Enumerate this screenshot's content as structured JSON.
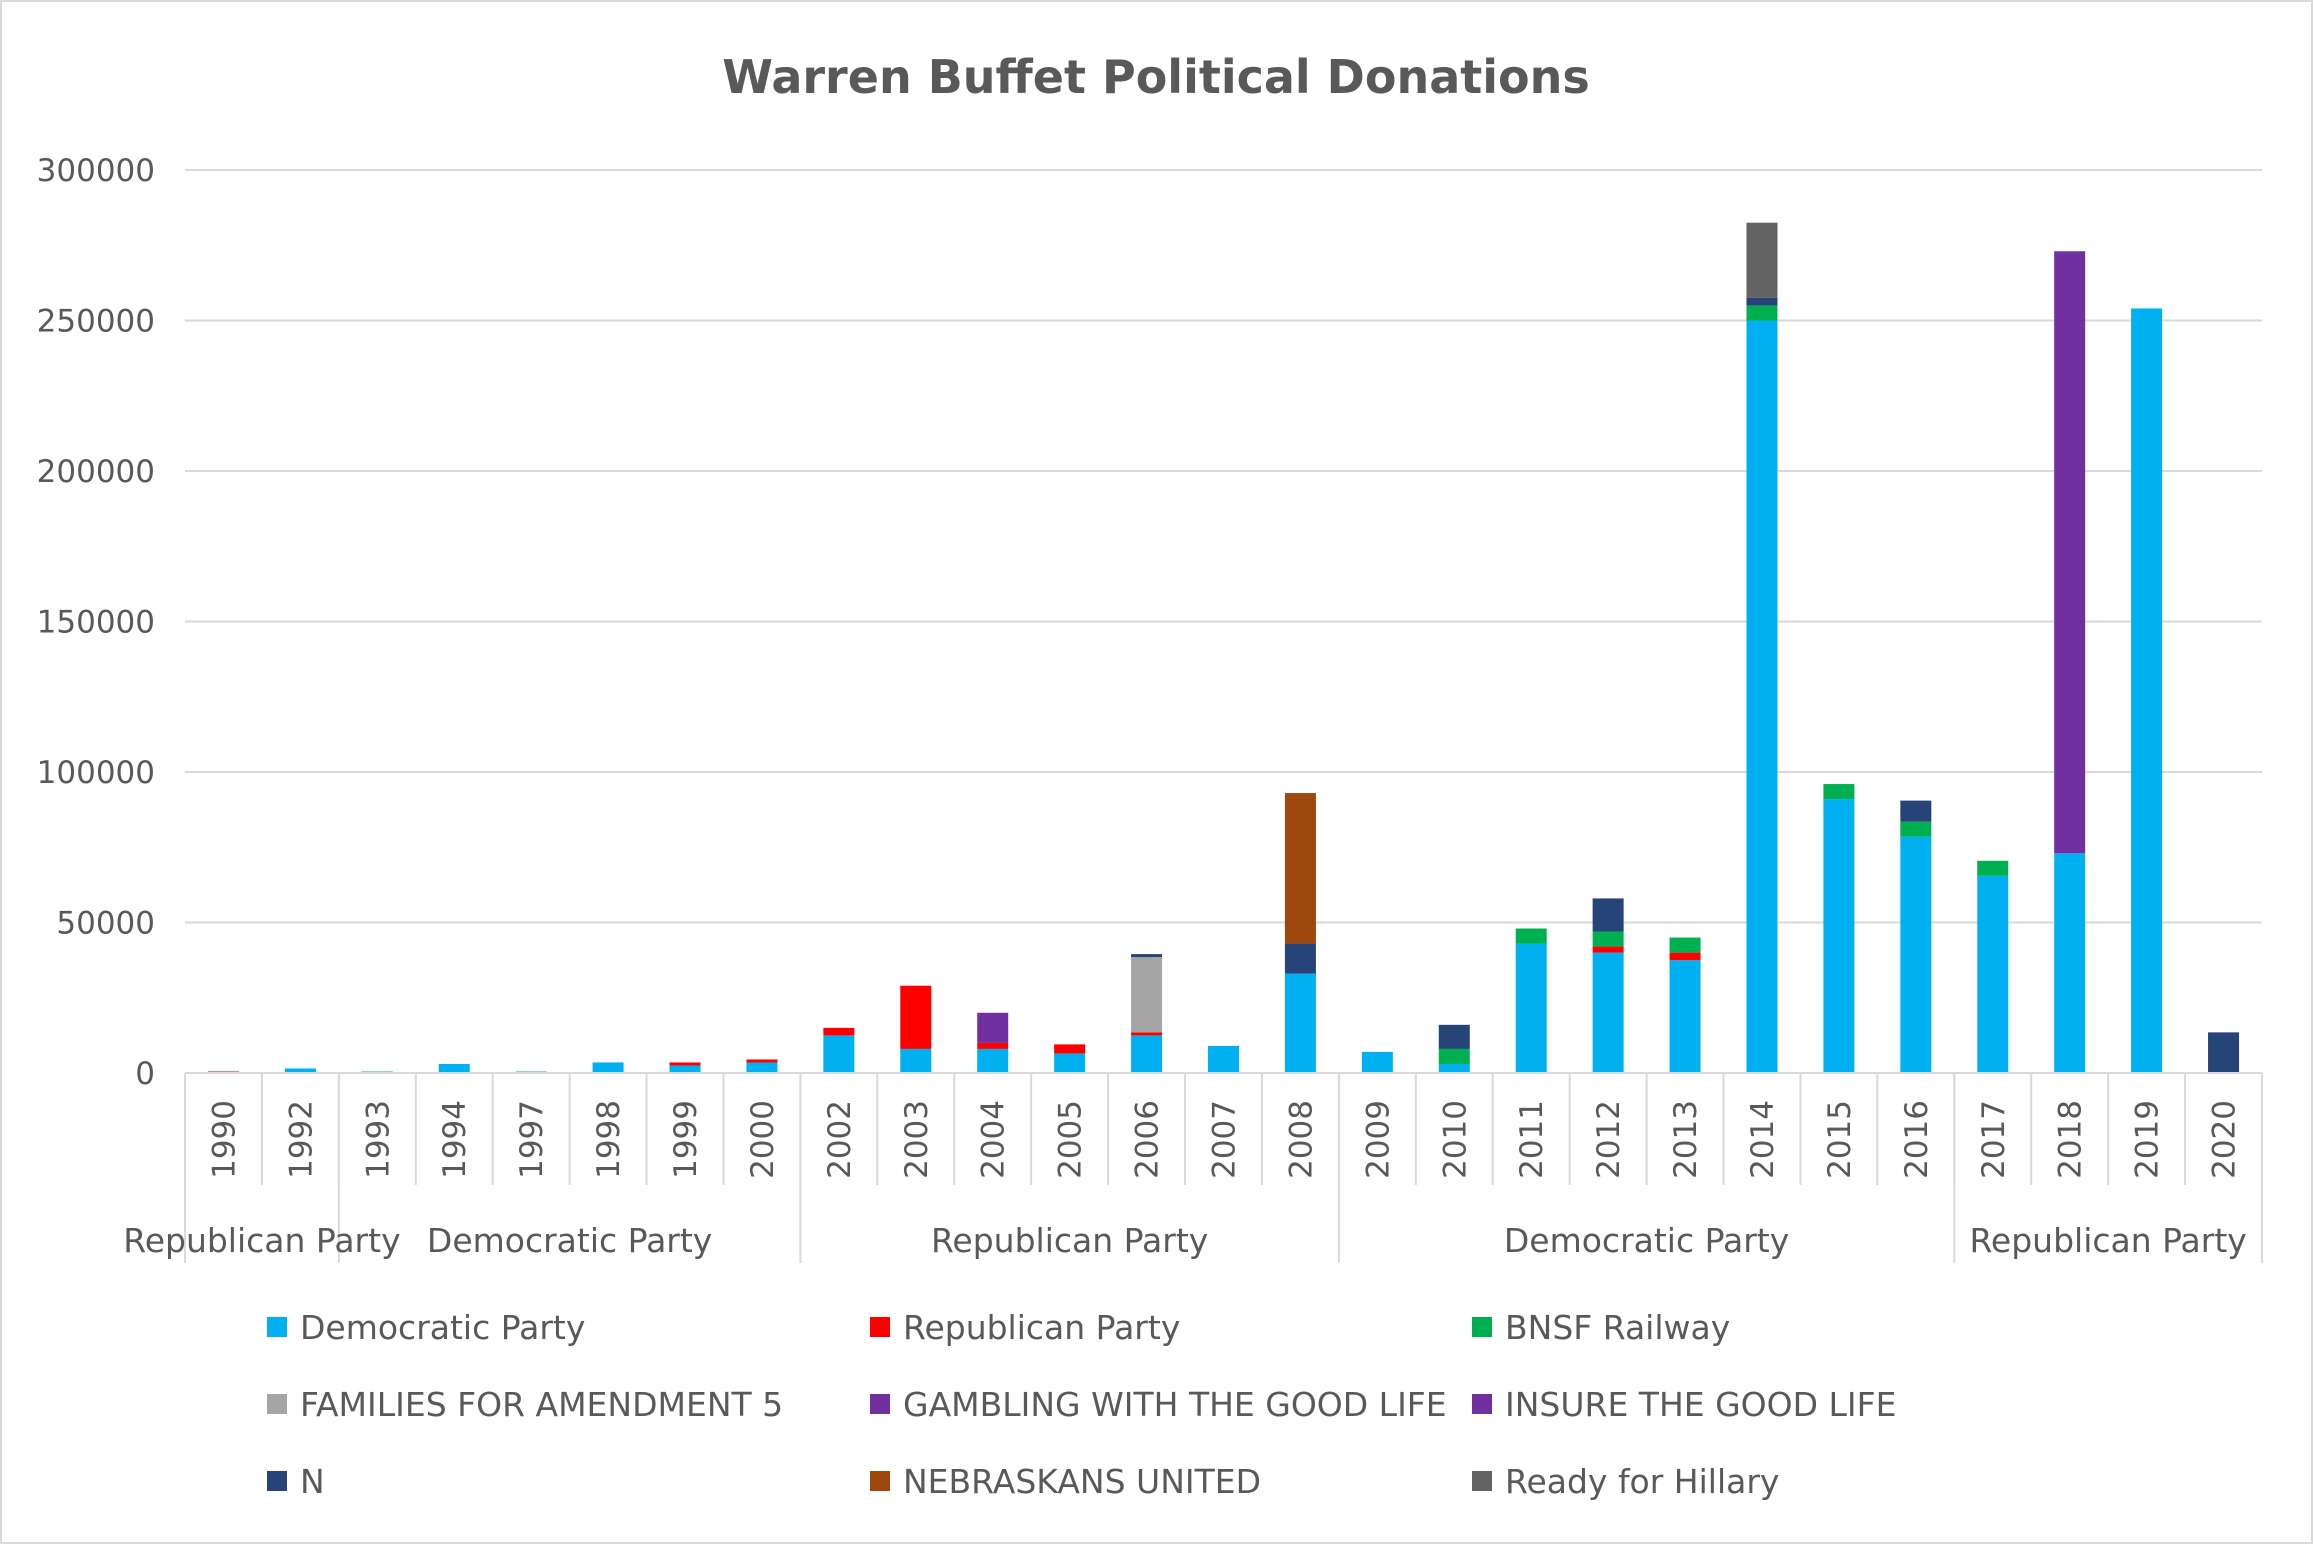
{
  "chart_data": {
    "type": "bar",
    "stacked": true,
    "title": "Warren Buffet Political Donations",
    "xlabel": "",
    "ylabel": "",
    "ylim": [
      0,
      300000
    ],
    "yticks": [
      0,
      50000,
      100000,
      150000,
      200000,
      250000,
      300000
    ],
    "ytick_labels": [
      "0",
      "50000",
      "100000",
      "150000",
      "200000",
      "250000",
      "300000"
    ],
    "grid": true,
    "legend_position": "bottom",
    "categories": [
      "1990",
      "1992",
      "1993",
      "1994",
      "1997",
      "1998",
      "1999",
      "2000",
      "2002",
      "2003",
      "2004",
      "2005",
      "2006",
      "2007",
      "2008",
      "2009",
      "2010",
      "2011",
      "2012",
      "2013",
      "2014",
      "2015",
      "2016",
      "2017",
      "2018",
      "2019",
      "2020"
    ],
    "groups": [
      {
        "label": "Republican Party",
        "count": 2
      },
      {
        "label": "Democratic Party",
        "count": 6
      },
      {
        "label": "Republican Party",
        "count": 7
      },
      {
        "label": "Democratic Party",
        "count": 8
      },
      {
        "label": "Republican Party",
        "count": 4
      }
    ],
    "series": [
      {
        "name": "Democratic Party",
        "color": "#00B0F0",
        "values": [
          0,
          1500,
          500,
          3000,
          500,
          3500,
          2500,
          3500,
          12500,
          8000,
          8000,
          6500,
          12500,
          9000,
          33000,
          7000,
          3000,
          43000,
          40000,
          37500,
          250000,
          91000,
          78500,
          65500,
          73000,
          254000,
          0
        ]
      },
      {
        "name": "Republican Party",
        "color": "#FF0000",
        "values": [
          500,
          0,
          0,
          0,
          0,
          0,
          1000,
          1000,
          2500,
          21000,
          2000,
          3000,
          1000,
          0,
          0,
          0,
          0,
          0,
          2000,
          2500,
          0,
          0,
          0,
          0,
          0,
          0,
          0
        ]
      },
      {
        "name": "BNSF Railway",
        "color": "#00B050",
        "values": [
          0,
          0,
          0,
          0,
          0,
          0,
          0,
          0,
          0,
          0,
          0,
          0,
          0,
          0,
          0,
          0,
          5000,
          5000,
          5000,
          5000,
          5000,
          5000,
          5000,
          5000,
          0,
          0,
          0
        ]
      },
      {
        "name": "FAMILIES FOR AMENDMENT 5",
        "color": "#A5A5A5",
        "values": [
          0,
          0,
          0,
          0,
          0,
          0,
          0,
          0,
          0,
          0,
          0,
          0,
          25000,
          0,
          0,
          0,
          0,
          0,
          0,
          0,
          0,
          0,
          0,
          0,
          0,
          0,
          0
        ]
      },
      {
        "name": "GAMBLING WITH THE GOOD LIFE",
        "color": "#7030A0",
        "values": [
          0,
          0,
          0,
          0,
          0,
          0,
          0,
          0,
          0,
          0,
          10000,
          0,
          0,
          0,
          0,
          0,
          0,
          0,
          0,
          0,
          0,
          0,
          0,
          0,
          200000,
          0,
          0
        ]
      },
      {
        "name": "INSURE THE GOOD LIFE",
        "color": "#7030A0",
        "values": [
          0,
          0,
          0,
          0,
          0,
          0,
          0,
          0,
          0,
          0,
          0,
          0,
          0,
          0,
          0,
          0,
          0,
          0,
          0,
          0,
          0,
          0,
          0,
          0,
          0,
          0,
          0
        ]
      },
      {
        "name": "N",
        "color": "#264478",
        "values": [
          0,
          0,
          0,
          0,
          0,
          0,
          0,
          0,
          0,
          0,
          0,
          0,
          1000,
          0,
          10000,
          0,
          8000,
          0,
          11000,
          0,
          2500,
          0,
          7000,
          0,
          0,
          0,
          13500
        ]
      },
      {
        "name": "NEBRASKANS UNITED",
        "color": "#9E480E",
        "values": [
          0,
          0,
          0,
          0,
          0,
          0,
          0,
          0,
          0,
          0,
          0,
          0,
          0,
          0,
          50000,
          0,
          0,
          0,
          0,
          0,
          0,
          0,
          0,
          0,
          0,
          0,
          0
        ]
      },
      {
        "name": "Ready for Hillary",
        "color": "#636363",
        "values": [
          0,
          0,
          0,
          0,
          0,
          0,
          0,
          0,
          0,
          0,
          0,
          0,
          0,
          0,
          0,
          0,
          0,
          0,
          0,
          0,
          25000,
          0,
          0,
          0,
          0,
          0,
          0
        ]
      }
    ]
  }
}
